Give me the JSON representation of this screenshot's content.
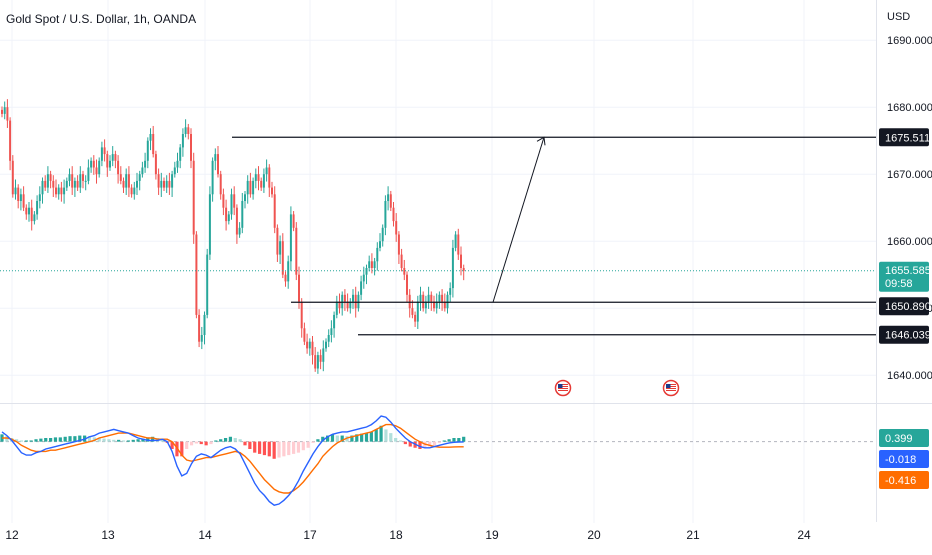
{
  "symbol": {
    "title": "Gold Spot / U.S. Dollar, 1h, OANDA",
    "currency": "USD"
  },
  "colors": {
    "up": "#26a69a",
    "down": "#ef5350",
    "line": "#131722",
    "grid": "#f0f3fa",
    "macd_line": "#2962ff",
    "signal_line": "#ff6d00",
    "hist_up_strong": "#26a69a",
    "hist_up_weak": "#b2dfdb",
    "hist_down_strong": "#ff5252",
    "hist_down_weak": "#ffcdd2",
    "label_dark": "#131722",
    "label_green": "#26a69a",
    "label_blue": "#2962ff",
    "label_orange": "#ff6d00",
    "current_price_line": "#26a69a"
  },
  "chart_data": {
    "type": "candlestick",
    "price_axis": {
      "ticks": [
        "1690.000",
        "1680.000",
        "1670.000",
        "1660.000",
        "1650.000",
        "1640.000"
      ],
      "tick_values": [
        1690,
        1680,
        1670,
        1660,
        1650,
        1640
      ],
      "ylim": [
        1636,
        1696
      ],
      "currency_label": "USD"
    },
    "time_axis": {
      "labels": [
        "12",
        "13",
        "14",
        "17",
        "18",
        "19",
        "20",
        "21",
        "24"
      ]
    },
    "current_price": {
      "value": 1655.585,
      "label": "1655.585",
      "countdown": "09:58"
    },
    "levels": [
      {
        "value": 1675.511,
        "label": "1675.511"
      },
      {
        "value": 1650.89,
        "label": "1650.890"
      },
      {
        "value": 1646.039,
        "label": "1646.039"
      }
    ],
    "projection": {
      "from": 1650.89,
      "to": 1675.511
    },
    "event_icons": [
      "us-flag-icon",
      "us-flag-icon"
    ],
    "close_path": [
      1679,
      1680,
      1678,
      1672,
      1667,
      1668,
      1666,
      1667,
      1665,
      1664,
      1665,
      1663,
      1664,
      1666,
      1667,
      1669,
      1668,
      1670,
      1669,
      1668,
      1667,
      1668,
      1667,
      1668,
      1669,
      1670,
      1668,
      1669,
      1668,
      1670,
      1669,
      1669,
      1671,
      1672,
      1671,
      1670,
      1672,
      1674,
      1673,
      1671,
      1672,
      1673,
      1672,
      1670,
      1669,
      1668,
      1670,
      1668,
      1667,
      1668,
      1669,
      1670,
      1671,
      1672,
      1675,
      1676,
      1673,
      1670,
      1668,
      1669,
      1668,
      1669,
      1668,
      1670,
      1671,
      1672,
      1674,
      1676,
      1677,
      1676,
      1672,
      1661,
      1649,
      1645,
      1646,
      1649,
      1658,
      1667,
      1672,
      1673,
      1670,
      1667,
      1665,
      1663,
      1664,
      1667,
      1665,
      1661,
      1662,
      1666,
      1667,
      1669,
      1667,
      1669,
      1670,
      1669,
      1668,
      1670,
      1671,
      1668,
      1667,
      1662,
      1658,
      1660,
      1655,
      1654,
      1657,
      1664,
      1662,
      1655,
      1651,
      1647,
      1645,
      1644,
      1645,
      1643,
      1641,
      1643,
      1642,
      1644,
      1645,
      1646,
      1647,
      1649,
      1651,
      1650,
      1652,
      1651,
      1650,
      1651,
      1652,
      1650,
      1652,
      1654,
      1655,
      1656,
      1657,
      1656,
      1657,
      1659,
      1660,
      1662,
      1666,
      1667,
      1665,
      1663,
      1661,
      1658,
      1656,
      1655,
      1652,
      1650,
      1649,
      1648,
      1651,
      1652,
      1650,
      1651,
      1652,
      1651,
      1650,
      1651,
      1652,
      1651,
      1650,
      1652,
      1653,
      1659,
      1661,
      1658,
      1656,
      1655.585
    ],
    "macd": {
      "histogram": [
        0.6,
        0.45,
        0.3,
        0.2,
        0.1,
        0.1,
        0.1,
        0.2,
        0.25,
        0.3,
        0.3,
        0.35,
        0.35,
        0.4,
        0.45,
        0.45,
        0.5,
        0.5,
        0.45,
        0.35,
        0.3,
        0.25,
        0.2,
        0.15,
        0.15,
        0.1,
        0.1,
        0.15,
        0.2,
        0.25,
        0.35,
        0.4,
        0.3,
        0.15,
        -0.1,
        -0.6,
        -1.2,
        -1.2,
        -0.6,
        -0.3,
        -0.15,
        -0.2,
        -0.3,
        -0.2,
        0.1,
        0.2,
        0.3,
        0.4,
        0.3,
        0.2,
        -0.3,
        -0.6,
        -0.9,
        -1.0,
        -1.1,
        -1.2,
        -1.4,
        -1.3,
        -1.2,
        -1.1,
        -1.0,
        -0.9,
        -0.7,
        -0.5,
        -0.1,
        0.2,
        0.4,
        0.5,
        0.6,
        0.5,
        0.5,
        0.45,
        0.5,
        0.6,
        0.65,
        0.7,
        0.8,
        1.0,
        1.3,
        1.0,
        0.7,
        0.3,
        0.1,
        -0.2,
        -0.4,
        -0.5,
        -0.6,
        -0.5,
        -0.4,
        -0.3,
        -0.1,
        0.1,
        0.2,
        0.3,
        0.3,
        0.4
      ],
      "macd_line": [
        0.8,
        0.5,
        0.1,
        -0.4,
        -0.9,
        -1.1,
        -1.1,
        -0.9,
        -0.8,
        -0.6,
        -0.5,
        -0.4,
        -0.3,
        -0.2,
        -0.1,
        0.0,
        0.1,
        0.2,
        0.4,
        0.5,
        0.7,
        0.8,
        0.9,
        1.0,
        0.9,
        0.8,
        0.7,
        0.5,
        0.3,
        0.2,
        0.1,
        0.1,
        0.1,
        0.2,
        0.0,
        -0.8,
        -2.0,
        -2.8,
        -2.6,
        -1.8,
        -1.2,
        -1.0,
        -1.1,
        -1.3,
        -1.0,
        -0.7,
        -0.5,
        -0.4,
        -0.6,
        -1.0,
        -1.8,
        -2.6,
        -3.4,
        -4.0,
        -4.4,
        -4.9,
        -5.2,
        -5.1,
        -4.8,
        -4.4,
        -3.9,
        -3.2,
        -2.4,
        -1.7,
        -1.0,
        -0.4,
        0.1,
        0.4,
        0.6,
        0.7,
        0.8,
        0.8,
        0.9,
        1.0,
        1.1,
        1.2,
        1.4,
        1.7,
        2.1,
        2.0,
        1.6,
        1.1,
        0.7,
        0.3,
        0.0,
        -0.2,
        -0.4,
        -0.5,
        -0.5,
        -0.4,
        -0.3,
        -0.2,
        -0.1,
        -0.05,
        -0.03,
        -0.018
      ],
      "signal_line": [
        0.3,
        0.3,
        0.2,
        0.0,
        -0.3,
        -0.5,
        -0.7,
        -0.8,
        -0.8,
        -0.8,
        -0.7,
        -0.7,
        -0.6,
        -0.5,
        -0.4,
        -0.3,
        -0.2,
        -0.1,
        0.0,
        0.1,
        0.3,
        0.4,
        0.5,
        0.6,
        0.7,
        0.7,
        0.7,
        0.6,
        0.5,
        0.4,
        0.3,
        0.3,
        0.2,
        0.2,
        0.2,
        0.0,
        -0.5,
        -1.1,
        -1.5,
        -1.6,
        -1.5,
        -1.4,
        -1.3,
        -1.3,
        -1.2,
        -1.1,
        -1.0,
        -0.9,
        -0.8,
        -0.9,
        -1.2,
        -1.6,
        -2.1,
        -2.6,
        -3.1,
        -3.5,
        -3.9,
        -4.1,
        -4.2,
        -4.2,
        -4.0,
        -3.7,
        -3.3,
        -2.8,
        -2.3,
        -1.8,
        -1.2,
        -0.8,
        -0.4,
        -0.1,
        0.1,
        0.3,
        0.4,
        0.5,
        0.6,
        0.7,
        0.8,
        1.0,
        1.2,
        1.4,
        1.4,
        1.3,
        1.1,
        0.8,
        0.5,
        0.2,
        0.0,
        -0.2,
        -0.3,
        -0.4,
        -0.45,
        -0.45,
        -0.45,
        -0.43,
        -0.42,
        -0.416
      ],
      "ylim": [
        -6,
        3
      ],
      "labels": {
        "histogram": "0.399",
        "macd": "-0.018",
        "signal": "-0.416"
      }
    }
  }
}
